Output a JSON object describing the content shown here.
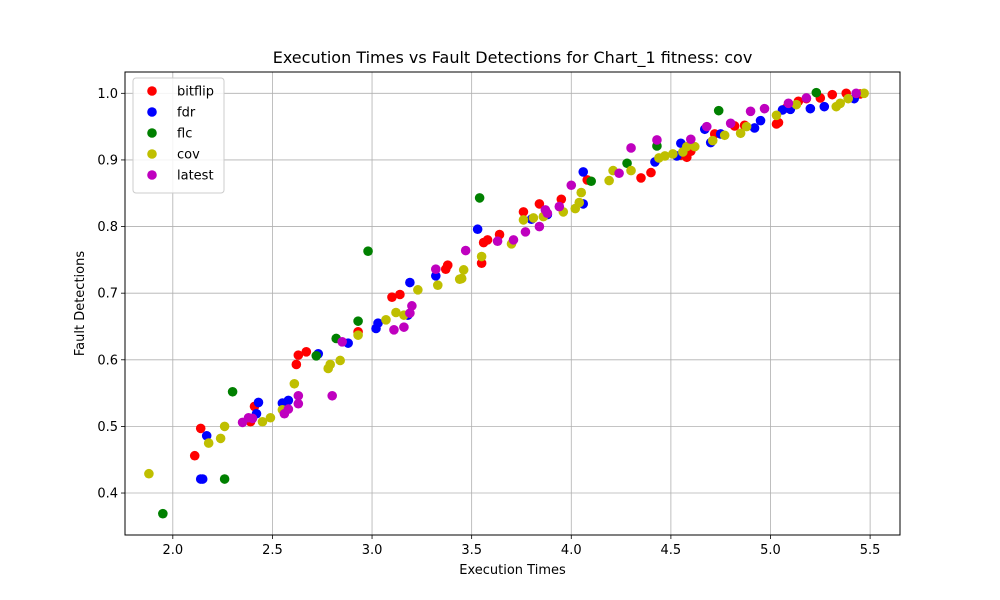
{
  "chart_data": {
    "type": "scatter",
    "title": "Execution Times vs Fault Detections for Chart_1 fitness: cov",
    "xlabel": "Execution Times",
    "ylabel": "Fault Detections",
    "xlim": [
      1.76,
      5.65
    ],
    "ylim": [
      0.337,
      1.032
    ],
    "xticks": [
      2.0,
      2.5,
      3.0,
      3.5,
      4.0,
      4.5,
      5.0,
      5.5
    ],
    "xtick_labels": [
      "2.0",
      "2.5",
      "3.0",
      "3.5",
      "4.0",
      "4.5",
      "5.0",
      "5.5"
    ],
    "yticks": [
      0.4,
      0.5,
      0.6,
      0.7,
      0.8,
      0.9,
      1.0
    ],
    "ytick_labels": [
      "0.4",
      "0.5",
      "0.6",
      "0.7",
      "0.8",
      "0.9",
      "1.0"
    ],
    "grid": true,
    "legend_position": "top-left",
    "series": [
      {
        "name": "bitflip",
        "color": "#ff0000",
        "points": [
          [
            2.11,
            0.456
          ],
          [
            2.14,
            0.497
          ],
          [
            2.39,
            0.507
          ],
          [
            2.41,
            0.53
          ],
          [
            2.62,
            0.593
          ],
          [
            2.63,
            0.607
          ],
          [
            2.67,
            0.612
          ],
          [
            2.93,
            0.642
          ],
          [
            3.1,
            0.694
          ],
          [
            3.14,
            0.698
          ],
          [
            3.37,
            0.736
          ],
          [
            3.38,
            0.742
          ],
          [
            3.55,
            0.745
          ],
          [
            3.56,
            0.776
          ],
          [
            3.58,
            0.78
          ],
          [
            3.64,
            0.788
          ],
          [
            3.76,
            0.822
          ],
          [
            3.84,
            0.834
          ],
          [
            3.95,
            0.841
          ],
          [
            4.08,
            0.87
          ],
          [
            4.35,
            0.873
          ],
          [
            4.4,
            0.881
          ],
          [
            4.55,
            0.907
          ],
          [
            4.58,
            0.904
          ],
          [
            4.6,
            0.913
          ],
          [
            4.72,
            0.939
          ],
          [
            4.82,
            0.951
          ],
          [
            4.87,
            0.952
          ],
          [
            5.03,
            0.954
          ],
          [
            5.04,
            0.956
          ],
          [
            5.08,
            0.978
          ],
          [
            5.14,
            0.988
          ],
          [
            5.18,
            0.992
          ],
          [
            5.25,
            0.993
          ],
          [
            5.31,
            0.998
          ],
          [
            5.38,
            1.0
          ],
          [
            5.45,
            0.999
          ]
        ]
      },
      {
        "name": "fdr",
        "color": "#0000ff",
        "points": [
          [
            2.14,
            0.421
          ],
          [
            2.15,
            0.421
          ],
          [
            2.17,
            0.486
          ],
          [
            2.42,
            0.519
          ],
          [
            2.43,
            0.536
          ],
          [
            2.55,
            0.535
          ],
          [
            2.58,
            0.539
          ],
          [
            2.73,
            0.609
          ],
          [
            2.88,
            0.625
          ],
          [
            3.02,
            0.647
          ],
          [
            3.03,
            0.655
          ],
          [
            3.18,
            0.667
          ],
          [
            3.19,
            0.716
          ],
          [
            3.32,
            0.726
          ],
          [
            3.53,
            0.796
          ],
          [
            3.8,
            0.811
          ],
          [
            3.88,
            0.818
          ],
          [
            4.06,
            0.834
          ],
          [
            4.06,
            0.882
          ],
          [
            4.42,
            0.897
          ],
          [
            4.53,
            0.906
          ],
          [
            4.55,
            0.925
          ],
          [
            4.67,
            0.946
          ],
          [
            4.7,
            0.926
          ],
          [
            4.75,
            0.939
          ],
          [
            4.92,
            0.948
          ],
          [
            4.95,
            0.959
          ],
          [
            5.06,
            0.975
          ],
          [
            5.1,
            0.976
          ],
          [
            5.2,
            0.977
          ],
          [
            5.27,
            0.98
          ],
          [
            5.42,
            0.992
          ]
        ]
      },
      {
        "name": "flc",
        "color": "#008000",
        "points": [
          [
            1.95,
            0.369
          ],
          [
            2.26,
            0.421
          ],
          [
            2.3,
            0.552
          ],
          [
            2.72,
            0.606
          ],
          [
            2.82,
            0.632
          ],
          [
            2.93,
            0.658
          ],
          [
            2.98,
            0.763
          ],
          [
            3.54,
            0.843
          ],
          [
            4.1,
            0.868
          ],
          [
            4.28,
            0.895
          ],
          [
            4.43,
            0.921
          ],
          [
            4.74,
            0.974
          ],
          [
            5.23,
            1.001
          ]
        ]
      },
      {
        "name": "cov",
        "color": "#bfbf00",
        "points": [
          [
            1.88,
            0.429
          ],
          [
            2.18,
            0.475
          ],
          [
            2.24,
            0.482
          ],
          [
            2.26,
            0.5
          ],
          [
            2.45,
            0.507
          ],
          [
            2.49,
            0.513
          ],
          [
            2.55,
            0.525
          ],
          [
            2.61,
            0.564
          ],
          [
            2.78,
            0.587
          ],
          [
            2.79,
            0.593
          ],
          [
            2.84,
            0.599
          ],
          [
            2.93,
            0.637
          ],
          [
            3.07,
            0.66
          ],
          [
            3.12,
            0.671
          ],
          [
            3.16,
            0.667
          ],
          [
            3.23,
            0.705
          ],
          [
            3.33,
            0.712
          ],
          [
            3.44,
            0.721
          ],
          [
            3.45,
            0.722
          ],
          [
            3.46,
            0.735
          ],
          [
            3.55,
            0.755
          ],
          [
            3.7,
            0.774
          ],
          [
            3.76,
            0.81
          ],
          [
            3.81,
            0.813
          ],
          [
            3.86,
            0.815
          ],
          [
            3.96,
            0.822
          ],
          [
            4.02,
            0.827
          ],
          [
            4.04,
            0.836
          ],
          [
            4.05,
            0.851
          ],
          [
            4.19,
            0.869
          ],
          [
            4.21,
            0.884
          ],
          [
            4.3,
            0.884
          ],
          [
            4.44,
            0.903
          ],
          [
            4.47,
            0.906
          ],
          [
            4.51,
            0.909
          ],
          [
            4.56,
            0.912
          ],
          [
            4.58,
            0.92
          ],
          [
            4.62,
            0.92
          ],
          [
            4.71,
            0.929
          ],
          [
            4.77,
            0.937
          ],
          [
            4.85,
            0.94
          ],
          [
            4.88,
            0.95
          ],
          [
            5.03,
            0.967
          ],
          [
            5.13,
            0.983
          ],
          [
            5.33,
            0.98
          ],
          [
            5.35,
            0.985
          ],
          [
            5.39,
            0.992
          ],
          [
            5.47,
            1.0
          ]
        ]
      },
      {
        "name": "latest",
        "color": "#bf00bf",
        "points": [
          [
            2.35,
            0.506
          ],
          [
            2.38,
            0.513
          ],
          [
            2.4,
            0.512
          ],
          [
            2.56,
            0.519
          ],
          [
            2.58,
            0.526
          ],
          [
            2.63,
            0.534
          ],
          [
            2.63,
            0.546
          ],
          [
            2.8,
            0.546
          ],
          [
            2.85,
            0.627
          ],
          [
            3.11,
            0.645
          ],
          [
            3.16,
            0.649
          ],
          [
            3.19,
            0.67
          ],
          [
            3.2,
            0.681
          ],
          [
            3.32,
            0.736
          ],
          [
            3.47,
            0.764
          ],
          [
            3.63,
            0.778
          ],
          [
            3.71,
            0.78
          ],
          [
            3.77,
            0.792
          ],
          [
            3.84,
            0.8
          ],
          [
            3.87,
            0.825
          ],
          [
            3.88,
            0.82
          ],
          [
            3.94,
            0.83
          ],
          [
            4.0,
            0.862
          ],
          [
            4.24,
            0.88
          ],
          [
            4.3,
            0.918
          ],
          [
            4.43,
            0.93
          ],
          [
            4.6,
            0.931
          ],
          [
            4.68,
            0.95
          ],
          [
            4.8,
            0.955
          ],
          [
            4.9,
            0.973
          ],
          [
            4.97,
            0.977
          ],
          [
            5.09,
            0.985
          ],
          [
            5.18,
            0.993
          ],
          [
            5.43,
            1.0
          ]
        ]
      }
    ]
  }
}
